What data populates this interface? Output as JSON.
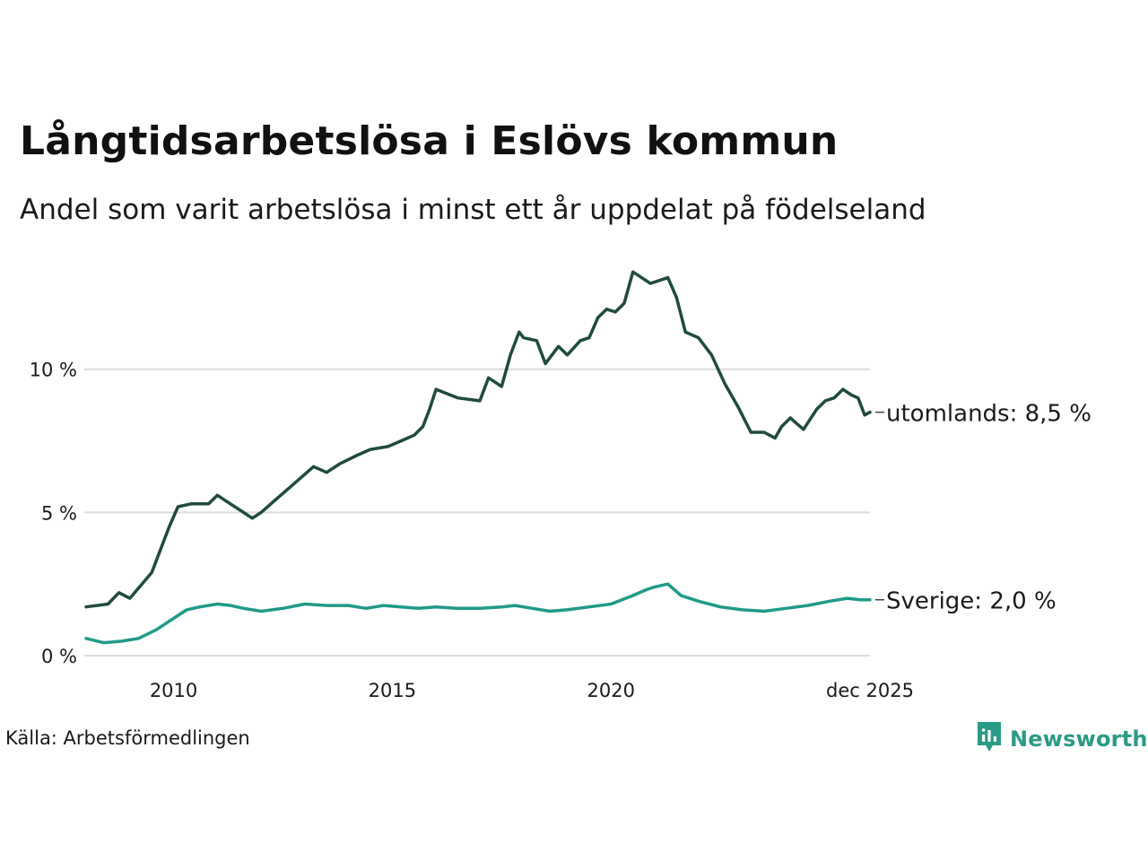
{
  "title": "Långtidsarbetslösa i Eslövs kommun",
  "subtitle": "Andel som varit arbetslösa i minst ett år uppdelat på födelseland",
  "source": "Källa: Arbetsförmedlingen",
  "brand": "Newsworthy",
  "colors": {
    "utomlands": "#1f4a40",
    "sverige": "#1f9a88",
    "grid": "#dcdcdc",
    "brand": "#2b9a86"
  },
  "chart_data": {
    "type": "line",
    "title": "Långtidsarbetslösa i Eslövs kommun",
    "xlabel": "",
    "ylabel": "",
    "xlim": [
      2008.0,
      2025.92
    ],
    "ylim": [
      0,
      13.5
    ],
    "yticks": [
      {
        "value": 0,
        "label": "0 %"
      },
      {
        "value": 5,
        "label": "5 %"
      },
      {
        "value": 10,
        "label": "10 %"
      }
    ],
    "xticks": [
      {
        "value": 2010,
        "label": "2010"
      },
      {
        "value": 2015,
        "label": "2015"
      },
      {
        "value": 2020,
        "label": "2020"
      },
      {
        "value": 2025.92,
        "label": "dec 2025"
      }
    ],
    "series": [
      {
        "name": "utomlands",
        "end_label": "utomlands: 8,5 %",
        "x": [
          2008.0,
          2008.5,
          2008.75,
          2009.0,
          2009.5,
          2009.9,
          2010.1,
          2010.4,
          2010.8,
          2011.0,
          2011.3,
          2011.6,
          2011.8,
          2012.0,
          2012.3,
          2012.6,
          2012.9,
          2013.2,
          2013.5,
          2013.8,
          2014.2,
          2014.5,
          2014.9,
          2015.2,
          2015.5,
          2015.7,
          2015.85,
          2016.0,
          2016.5,
          2017.0,
          2017.2,
          2017.5,
          2017.7,
          2017.9,
          2018.0,
          2018.3,
          2018.5,
          2018.8,
          2019.0,
          2019.3,
          2019.5,
          2019.7,
          2019.9,
          2020.1,
          2020.3,
          2020.5,
          2020.7,
          2020.9,
          2021.1,
          2021.3,
          2021.5,
          2021.7,
          2022.0,
          2022.3,
          2022.6,
          2022.9,
          2023.2,
          2023.5,
          2023.75,
          2023.9,
          2024.1,
          2024.4,
          2024.7,
          2024.9,
          2025.1,
          2025.3,
          2025.5,
          2025.65,
          2025.8,
          2025.92
        ],
        "values": [
          1.7,
          1.8,
          2.2,
          2.0,
          2.9,
          4.5,
          5.2,
          5.3,
          5.3,
          5.6,
          5.3,
          5.0,
          4.8,
          5.0,
          5.4,
          5.8,
          6.2,
          6.6,
          6.4,
          6.7,
          7.0,
          7.2,
          7.3,
          7.5,
          7.7,
          8.0,
          8.6,
          9.3,
          9.0,
          8.9,
          9.7,
          9.4,
          10.5,
          11.3,
          11.1,
          11.0,
          10.2,
          10.8,
          10.5,
          11.0,
          11.1,
          11.8,
          12.1,
          12.0,
          12.3,
          13.4,
          13.2,
          13.0,
          13.1,
          13.2,
          12.5,
          11.3,
          11.1,
          10.5,
          9.5,
          8.7,
          7.8,
          7.8,
          7.6,
          8.0,
          8.3,
          7.9,
          8.6,
          8.9,
          9.0,
          9.3,
          9.1,
          9.0,
          8.4,
          8.5
        ]
      },
      {
        "name": "Sverige",
        "end_label": "Sverige: 2,0 %",
        "x": [
          2008.0,
          2008.4,
          2008.8,
          2009.2,
          2009.6,
          2010.0,
          2010.3,
          2010.6,
          2011.0,
          2011.3,
          2011.6,
          2012.0,
          2012.5,
          2013.0,
          2013.5,
          2014.0,
          2014.4,
          2014.8,
          2015.2,
          2015.6,
          2016.0,
          2016.5,
          2017.0,
          2017.5,
          2017.8,
          2018.2,
          2018.6,
          2019.0,
          2019.5,
          2020.0,
          2020.5,
          2020.8,
          2021.0,
          2021.3,
          2021.6,
          2022.0,
          2022.5,
          2023.0,
          2023.5,
          2024.0,
          2024.5,
          2025.0,
          2025.4,
          2025.7,
          2025.92
        ],
        "values": [
          0.6,
          0.45,
          0.5,
          0.6,
          0.9,
          1.3,
          1.6,
          1.7,
          1.8,
          1.75,
          1.65,
          1.55,
          1.65,
          1.8,
          1.75,
          1.75,
          1.65,
          1.75,
          1.7,
          1.65,
          1.7,
          1.65,
          1.65,
          1.7,
          1.75,
          1.65,
          1.55,
          1.6,
          1.7,
          1.8,
          2.1,
          2.3,
          2.4,
          2.5,
          2.1,
          1.9,
          1.7,
          1.6,
          1.55,
          1.65,
          1.75,
          1.9,
          2.0,
          1.95,
          1.95
        ]
      }
    ]
  }
}
